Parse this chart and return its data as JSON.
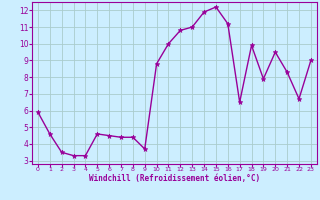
{
  "x": [
    0,
    1,
    2,
    3,
    4,
    5,
    6,
    7,
    8,
    9,
    10,
    11,
    12,
    13,
    14,
    15,
    16,
    17,
    18,
    19,
    20,
    21,
    22,
    23
  ],
  "y": [
    5.9,
    4.6,
    3.5,
    3.3,
    3.3,
    4.6,
    4.5,
    4.4,
    4.4,
    3.7,
    8.8,
    10.0,
    10.8,
    11.0,
    11.9,
    12.2,
    11.2,
    6.5,
    9.9,
    7.9,
    9.5,
    8.3,
    6.7,
    9.0
  ],
  "line_color": "#990099",
  "marker": "*",
  "marker_size": 3.5,
  "line_width": 1.0,
  "bg_color": "#cceeff",
  "grid_color": "#aacccc",
  "xlabel": "Windchill (Refroidissement éolien,°C)",
  "xlabel_color": "#990099",
  "tick_color": "#990099",
  "ylim": [
    2.8,
    12.5
  ],
  "xlim": [
    -0.5,
    23.5
  ],
  "yticks": [
    3,
    4,
    5,
    6,
    7,
    8,
    9,
    10,
    11,
    12
  ],
  "xticks": [
    0,
    1,
    2,
    3,
    4,
    5,
    6,
    7,
    8,
    9,
    10,
    11,
    12,
    13,
    14,
    15,
    16,
    17,
    18,
    19,
    20,
    21,
    22,
    23
  ],
  "xlabel_fontsize": 5.5,
  "ytick_fontsize": 5.5,
  "xtick_fontsize": 4.5
}
